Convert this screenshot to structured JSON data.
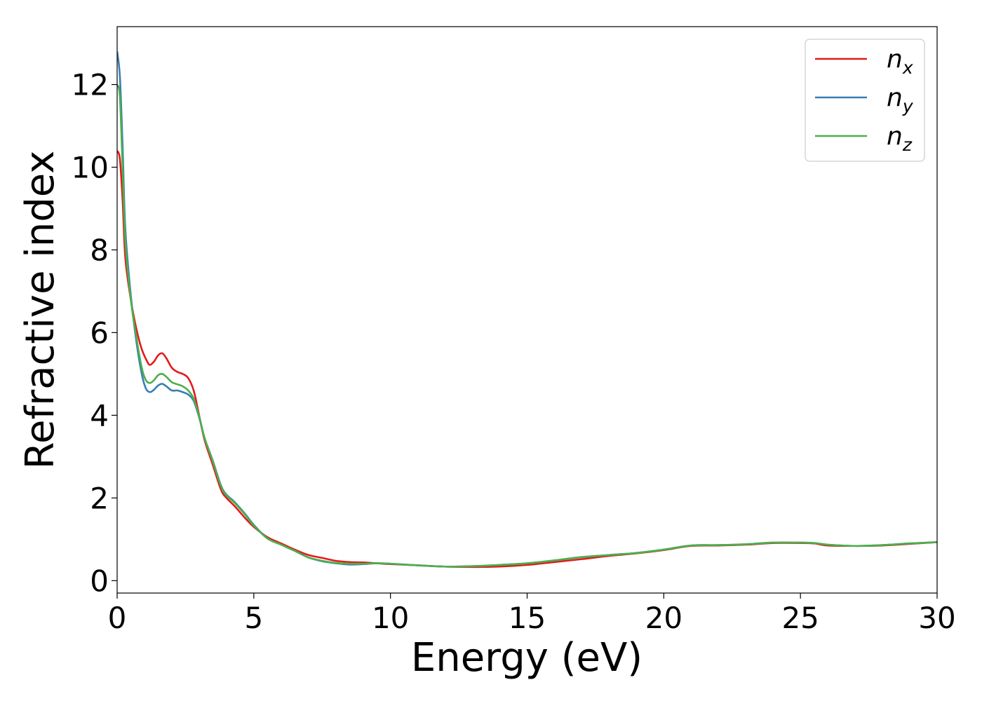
{
  "chart_data": {
    "type": "line",
    "title": "",
    "xlabel": "Energy (eV)",
    "ylabel": "Refractive index",
    "xlim": [
      0,
      30
    ],
    "ylim": [
      -0.3,
      13.4
    ],
    "xticks": [
      0,
      5,
      10,
      15,
      20,
      25,
      30
    ],
    "yticks": [
      0,
      2,
      4,
      6,
      8,
      10,
      12
    ],
    "grid": false,
    "legend_position": "top-right",
    "series": [
      {
        "name": "n",
        "subscript": "x",
        "color": "#e41a1c",
        "points": [
          [
            0,
            10.4
          ],
          [
            0.1,
            10.2
          ],
          [
            0.2,
            9.2
          ],
          [
            0.3,
            7.8
          ],
          [
            0.5,
            6.8
          ],
          [
            0.7,
            6.1
          ],
          [
            0.9,
            5.6
          ],
          [
            1.1,
            5.3
          ],
          [
            1.2,
            5.22
          ],
          [
            1.35,
            5.3
          ],
          [
            1.5,
            5.45
          ],
          [
            1.65,
            5.5
          ],
          [
            1.8,
            5.38
          ],
          [
            2.0,
            5.15
          ],
          [
            2.2,
            5.05
          ],
          [
            2.4,
            5.0
          ],
          [
            2.6,
            4.9
          ],
          [
            2.8,
            4.6
          ],
          [
            3.0,
            4.0
          ],
          [
            3.2,
            3.4
          ],
          [
            3.5,
            2.8
          ],
          [
            3.8,
            2.2
          ],
          [
            4.0,
            2.0
          ],
          [
            4.3,
            1.8
          ],
          [
            4.7,
            1.5
          ],
          [
            5.0,
            1.3
          ],
          [
            5.5,
            1.05
          ],
          [
            6.0,
            0.9
          ],
          [
            6.5,
            0.75
          ],
          [
            7.0,
            0.62
          ],
          [
            7.5,
            0.55
          ],
          [
            8.0,
            0.48
          ],
          [
            8.5,
            0.45
          ],
          [
            9.0,
            0.44
          ],
          [
            9.5,
            0.42
          ],
          [
            10.0,
            0.4
          ],
          [
            11.0,
            0.37
          ],
          [
            12.0,
            0.34
          ],
          [
            13.0,
            0.33
          ],
          [
            14.0,
            0.34
          ],
          [
            15.0,
            0.38
          ],
          [
            16.0,
            0.45
          ],
          [
            17.0,
            0.52
          ],
          [
            18.0,
            0.6
          ],
          [
            19.0,
            0.66
          ],
          [
            20.0,
            0.74
          ],
          [
            21.0,
            0.84
          ],
          [
            22.0,
            0.85
          ],
          [
            23.0,
            0.87
          ],
          [
            24.0,
            0.91
          ],
          [
            25.0,
            0.91
          ],
          [
            25.5,
            0.9
          ],
          [
            26.0,
            0.85
          ],
          [
            27.0,
            0.84
          ],
          [
            28.0,
            0.85
          ],
          [
            29.0,
            0.89
          ],
          [
            30.0,
            0.93
          ]
        ]
      },
      {
        "name": "n",
        "subscript": "y",
        "color": "#377eb8",
        "points": [
          [
            0,
            12.8
          ],
          [
            0.1,
            12.2
          ],
          [
            0.2,
            10.5
          ],
          [
            0.3,
            8.5
          ],
          [
            0.5,
            6.9
          ],
          [
            0.7,
            5.8
          ],
          [
            0.9,
            5.0
          ],
          [
            1.05,
            4.65
          ],
          [
            1.2,
            4.56
          ],
          [
            1.35,
            4.62
          ],
          [
            1.5,
            4.72
          ],
          [
            1.65,
            4.76
          ],
          [
            1.8,
            4.7
          ],
          [
            2.0,
            4.6
          ],
          [
            2.2,
            4.6
          ],
          [
            2.4,
            4.56
          ],
          [
            2.6,
            4.5
          ],
          [
            2.8,
            4.35
          ],
          [
            3.0,
            3.95
          ],
          [
            3.2,
            3.45
          ],
          [
            3.5,
            2.9
          ],
          [
            3.8,
            2.3
          ],
          [
            4.0,
            2.08
          ],
          [
            4.3,
            1.9
          ],
          [
            4.7,
            1.6
          ],
          [
            5.0,
            1.35
          ],
          [
            5.5,
            1.02
          ],
          [
            6.0,
            0.87
          ],
          [
            6.5,
            0.72
          ],
          [
            7.0,
            0.56
          ],
          [
            7.5,
            0.47
          ],
          [
            8.0,
            0.42
          ],
          [
            8.5,
            0.39
          ],
          [
            9.0,
            0.4
          ],
          [
            9.5,
            0.42
          ],
          [
            10.0,
            0.41
          ],
          [
            11.0,
            0.37
          ],
          [
            12.0,
            0.34
          ],
          [
            13.0,
            0.35
          ],
          [
            14.0,
            0.38
          ],
          [
            15.0,
            0.42
          ],
          [
            16.0,
            0.49
          ],
          [
            17.0,
            0.57
          ],
          [
            18.0,
            0.62
          ],
          [
            19.0,
            0.67
          ],
          [
            20.0,
            0.75
          ],
          [
            21.0,
            0.85
          ],
          [
            22.0,
            0.86
          ],
          [
            23.0,
            0.88
          ],
          [
            24.0,
            0.92
          ],
          [
            25.0,
            0.92
          ],
          [
            25.5,
            0.91
          ],
          [
            26.0,
            0.87
          ],
          [
            27.0,
            0.84
          ],
          [
            28.0,
            0.86
          ],
          [
            29.0,
            0.9
          ],
          [
            30.0,
            0.93
          ]
        ]
      },
      {
        "name": "n",
        "subscript": "z",
        "color": "#4daf4a",
        "points": [
          [
            0,
            12.0
          ],
          [
            0.1,
            11.7
          ],
          [
            0.2,
            10.0
          ],
          [
            0.3,
            8.2
          ],
          [
            0.5,
            6.8
          ],
          [
            0.7,
            5.9
          ],
          [
            0.9,
            5.15
          ],
          [
            1.05,
            4.85
          ],
          [
            1.2,
            4.78
          ],
          [
            1.35,
            4.85
          ],
          [
            1.5,
            4.97
          ],
          [
            1.65,
            5.0
          ],
          [
            1.8,
            4.93
          ],
          [
            2.0,
            4.8
          ],
          [
            2.2,
            4.75
          ],
          [
            2.4,
            4.7
          ],
          [
            2.6,
            4.6
          ],
          [
            2.8,
            4.4
          ],
          [
            3.0,
            3.98
          ],
          [
            3.2,
            3.45
          ],
          [
            3.5,
            2.88
          ],
          [
            3.8,
            2.28
          ],
          [
            4.0,
            2.06
          ],
          [
            4.3,
            1.88
          ],
          [
            4.7,
            1.58
          ],
          [
            5.0,
            1.33
          ],
          [
            5.5,
            1.02
          ],
          [
            6.0,
            0.87
          ],
          [
            6.5,
            0.72
          ],
          [
            7.0,
            0.56
          ],
          [
            7.5,
            0.48
          ],
          [
            8.0,
            0.43
          ],
          [
            8.5,
            0.41
          ],
          [
            9.0,
            0.41
          ],
          [
            9.5,
            0.42
          ],
          [
            10.0,
            0.41
          ],
          [
            11.0,
            0.37
          ],
          [
            12.0,
            0.34
          ],
          [
            13.0,
            0.35
          ],
          [
            14.0,
            0.38
          ],
          [
            15.0,
            0.42
          ],
          [
            16.0,
            0.49
          ],
          [
            17.0,
            0.57
          ],
          [
            18.0,
            0.62
          ],
          [
            19.0,
            0.67
          ],
          [
            20.0,
            0.75
          ],
          [
            21.0,
            0.85
          ],
          [
            22.0,
            0.86
          ],
          [
            23.0,
            0.88
          ],
          [
            24.0,
            0.92
          ],
          [
            25.0,
            0.92
          ],
          [
            25.5,
            0.91
          ],
          [
            26.0,
            0.87
          ],
          [
            27.0,
            0.84
          ],
          [
            28.0,
            0.86
          ],
          [
            29.0,
            0.9
          ],
          [
            30.0,
            0.93
          ]
        ]
      }
    ]
  }
}
